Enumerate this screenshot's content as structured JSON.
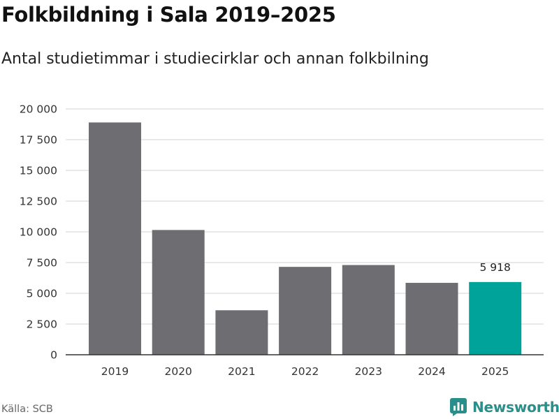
{
  "title": "Folkbildning i Sala 2019–2025",
  "subtitle": "Antal studietimmar i studiecirklar och annan folkbilning",
  "source": "Källa: SCB",
  "brand": {
    "name": "Newsworthy",
    "icon": "newsworthy-logo-icon"
  },
  "colors": {
    "bar": "#6e6d72",
    "highlight": "#00a39a",
    "grid": "#dcdcdc",
    "axis": "#333333"
  },
  "chart_data": {
    "type": "bar",
    "title": "Folkbildning i Sala 2019–2025",
    "subtitle": "Antal studietimmar i studiecirklar och annan folkbilning",
    "xlabel": "",
    "ylabel": "",
    "categories": [
      "2019",
      "2020",
      "2021",
      "2022",
      "2023",
      "2024",
      "2025"
    ],
    "values": [
      18900,
      10150,
      3620,
      7150,
      7300,
      5850,
      5918
    ],
    "highlight_index": 6,
    "data_labels": [
      {
        "index": 6,
        "text": "5 918"
      }
    ],
    "ylim": [
      0,
      20000
    ],
    "yticks": [
      0,
      2500,
      5000,
      7500,
      10000,
      12500,
      15000,
      17500,
      20000
    ],
    "ytick_labels": [
      "0",
      "2 500",
      "5 000",
      "7 500",
      "10 000",
      "12 500",
      "15 000",
      "17 500",
      "20 000"
    ],
    "grid": true,
    "legend": "none"
  }
}
